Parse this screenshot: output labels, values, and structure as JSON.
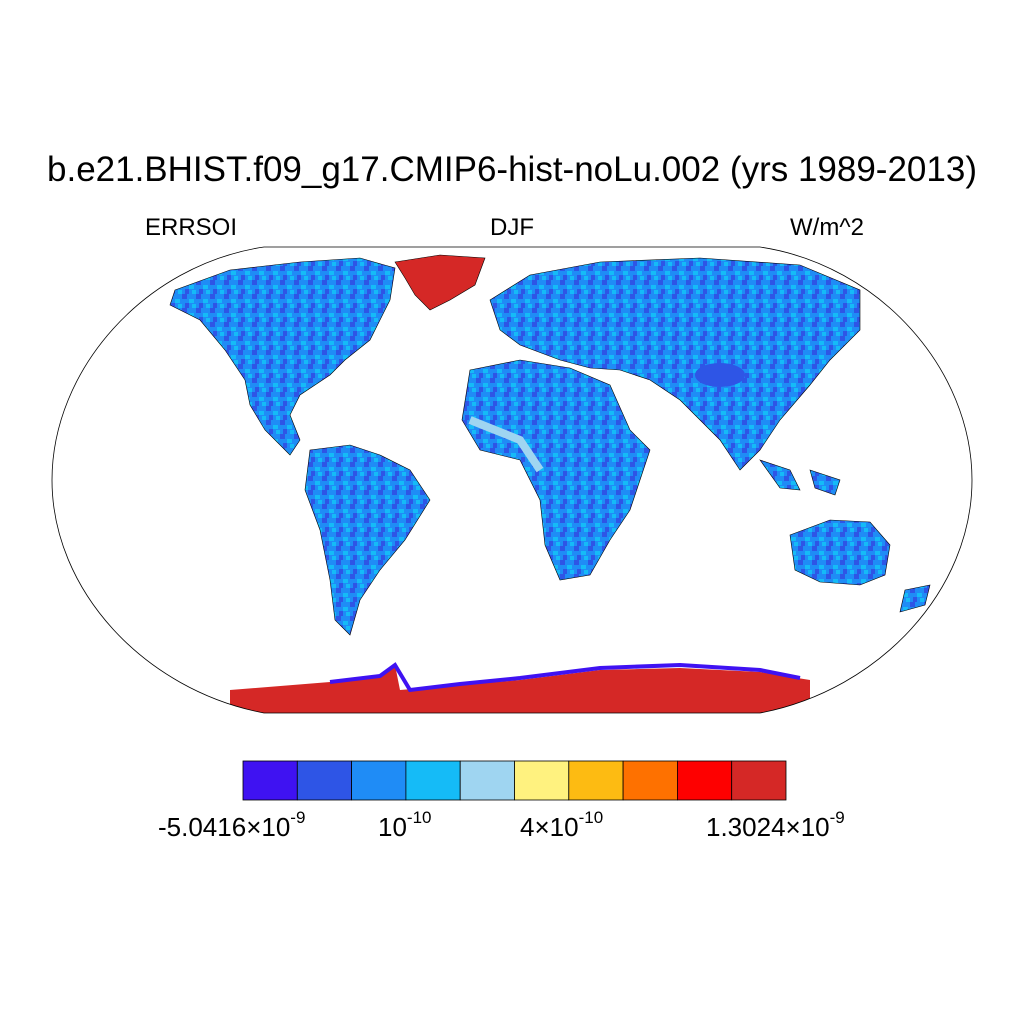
{
  "title": "b.e21.BHIST.f09_g17.CMIP6-hist-noLu.002 (yrs 1989-2013)",
  "left_label": "ERRSOI",
  "center_label": "DJF",
  "right_label": "W/m^2",
  "colorbar": {
    "colors": [
      "#3f12f2",
      "#2e55e6",
      "#1f8cf6",
      "#15bbf7",
      "#9fd5f1",
      "#fff27f",
      "#fdbb12",
      "#fe7100",
      "#fe0000",
      "#d52826"
    ],
    "labels": [
      {
        "mantissa": "-5.0416",
        "base": "10",
        "exponent": "-9"
      },
      {
        "mantissa": "",
        "base": "10",
        "exponent": "-10"
      },
      {
        "mantissa": "4",
        "base": "10",
        "exponent": "-10"
      },
      {
        "mantissa": "1.3024",
        "base": "10",
        "exponent": "-9"
      }
    ]
  },
  "map": {
    "projection": "robinson",
    "ocean_color": "#ffffff",
    "land_main_color": "#1f8cf6",
    "ice_color": "#d52826"
  }
}
